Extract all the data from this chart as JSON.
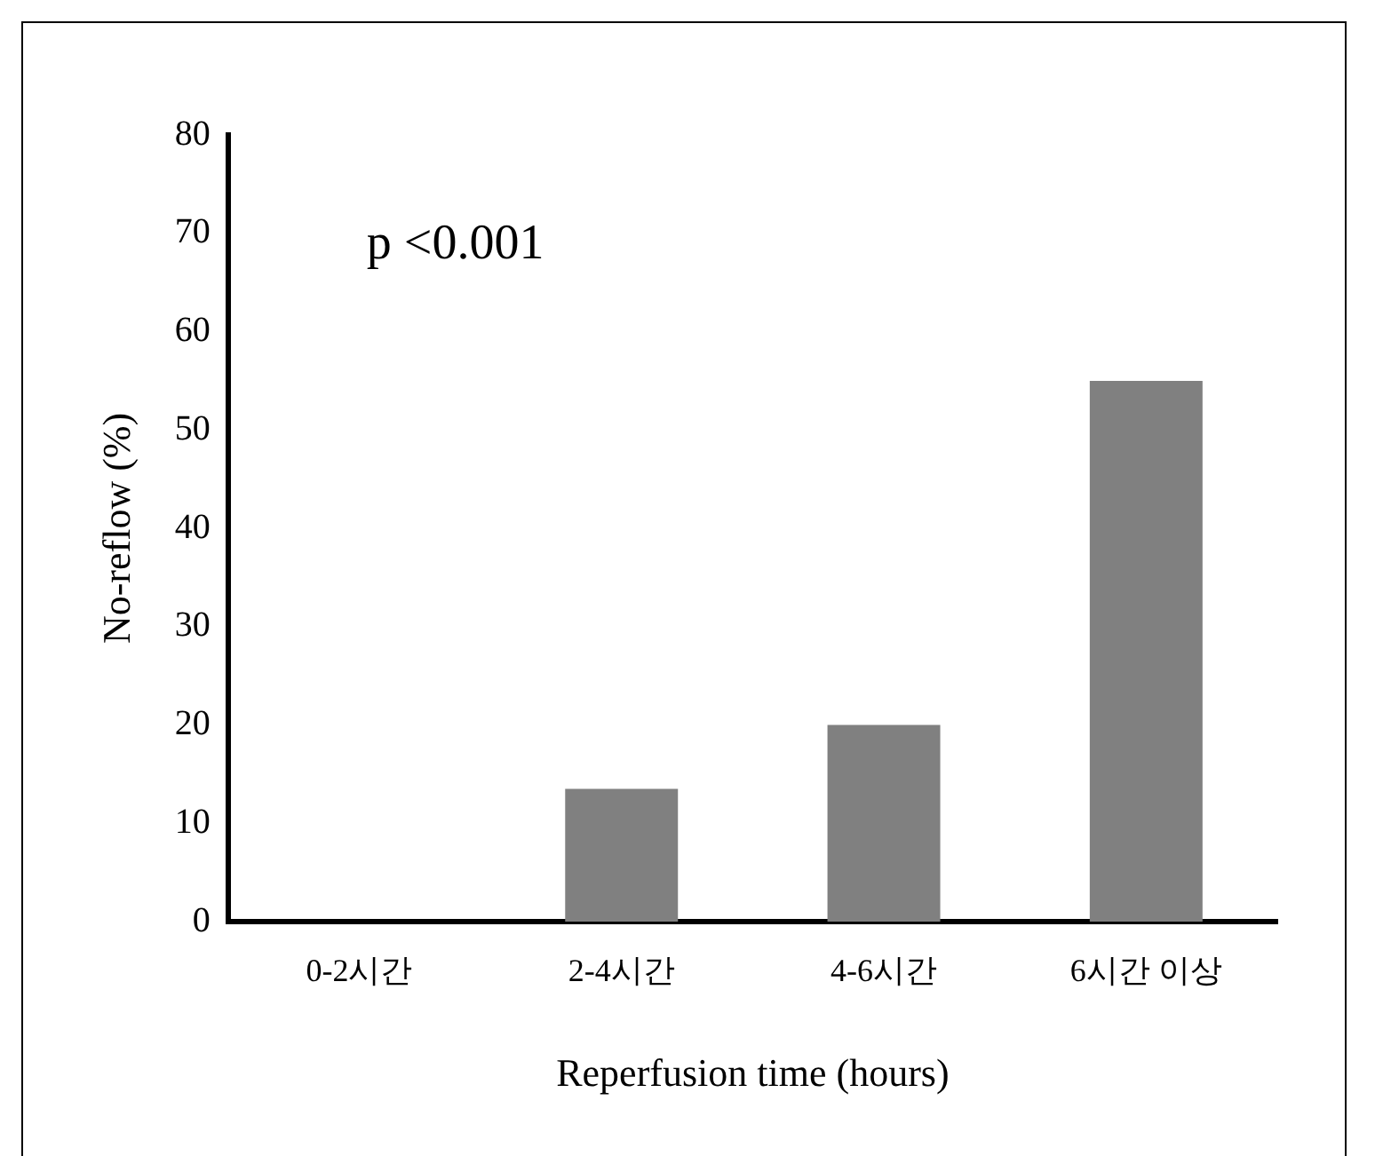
{
  "chart_data": {
    "type": "bar",
    "xlabel": "Reperfusion time (hours)",
    "ylabel": "No-reflow (%)",
    "categories": [
      "0-2시간",
      "2-4시간",
      "4-6시간",
      "6시간 이상"
    ],
    "values": [
      0,
      13.5,
      20,
      55
    ],
    "color": "#808080",
    "ylim": [
      0,
      80
    ],
    "yticks": [
      0,
      10,
      20,
      30,
      40,
      50,
      60,
      70,
      80
    ],
    "grid": false,
    "legend": false,
    "annotations": [
      "p <0.001"
    ]
  }
}
